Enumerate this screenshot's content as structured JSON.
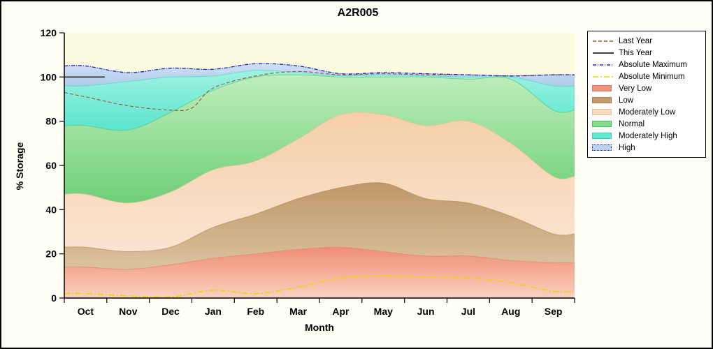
{
  "title": "A2R005",
  "axes": {
    "x_label": "Month",
    "y_label": "% Storage",
    "y_ticks": [
      0,
      20,
      40,
      60,
      80,
      100,
      120
    ],
    "months": [
      "Oct",
      "Nov",
      "Dec",
      "Jan",
      "Feb",
      "Mar",
      "Apr",
      "May",
      "Jun",
      "Jul",
      "Aug",
      "Sep"
    ]
  },
  "colors": {
    "plot_bg": "#fbfbdf",
    "figure_bg": "#fffff6",
    "axis": "#000000"
  },
  "chart_data": {
    "type": "area",
    "title": "A2R005",
    "xlabel": "Month",
    "ylabel": "% Storage",
    "ylim": [
      0,
      120
    ],
    "grid": false,
    "legend_position": "right-outside",
    "categories": [
      "Oct",
      "Nov",
      "Dec",
      "Jan",
      "Feb",
      "Mar",
      "Apr",
      "May",
      "Jun",
      "Jul",
      "Aug",
      "Sep"
    ],
    "bands_note": "tops are cumulative upper boundaries in % storage for each stacked percentile band",
    "bands": [
      {
        "name": "Very Low",
        "tops": [
          14,
          13,
          15,
          18,
          20,
          22,
          23,
          21,
          19,
          19,
          17,
          16
        ],
        "fill_top": "#ef8e74",
        "fill_bottom": "#fbd0c0",
        "stroke": "#e07b5e",
        "legend_color": "#f4937c"
      },
      {
        "name": "Low",
        "tops": [
          23,
          21,
          23,
          32,
          38,
          45,
          50,
          52,
          45,
          43,
          37,
          29
        ],
        "fill_top": "#be9768",
        "fill_bottom": "#dcc3a0",
        "stroke": "#a97f50",
        "legend_color": "#c49a6c"
      },
      {
        "name": "Moderately Low",
        "tops": [
          47,
          43,
          48,
          58,
          62,
          72,
          83,
          83,
          78,
          80,
          70,
          55
        ],
        "fill_top": "#f5cfa9",
        "fill_bottom": "#fae4d0",
        "stroke": "#e9b98a",
        "legend_color": "#f8dcbe"
      },
      {
        "name": "Normal",
        "tops": [
          78,
          76,
          84,
          94,
          100,
          101,
          100,
          100,
          100,
          99,
          99,
          85
        ],
        "fill_top": "#bfeebb",
        "fill_bottom": "#6ecf78",
        "stroke": "#4dbe63",
        "legend_color": "#85db88"
      },
      {
        "name": "Moderately High",
        "tops": [
          96,
          98,
          100,
          100.5,
          103,
          102,
          100.5,
          101,
          100.5,
          100,
          100,
          96
        ],
        "fill_top": "#9ff2e2",
        "fill_bottom": "#58e5ce",
        "stroke": "#3bd6bc",
        "legend_color": "#63e8d0"
      },
      {
        "name": "High",
        "tops": [
          105,
          102,
          104,
          103.5,
          106,
          105,
          101.5,
          102,
          101.5,
          101,
          100.5,
          101
        ],
        "fill_top": "#cfe0f6",
        "fill_bottom": "#aecbea",
        "stroke": "#9fbce0",
        "legend_color": "#bad2ee"
      }
    ],
    "lines": [
      {
        "name": "Last Year",
        "color": "#a0522d",
        "dash": "5 3",
        "width": 1.1,
        "u": [
          0,
          0.5,
          1.5,
          2.5,
          3.0,
          3.5,
          4.5,
          5.5,
          6.5,
          7.5,
          8.5,
          9.5,
          10.5,
          11.5,
          12
        ],
        "v": [
          93,
          91,
          87,
          85,
          86,
          95,
          100.5,
          102.5,
          101,
          101.5,
          101,
          101,
          100.5,
          101,
          101
        ]
      },
      {
        "name": "This Year",
        "color": "#000000",
        "dash": "",
        "width": 1.4,
        "u": [
          0,
          0.5,
          0.95
        ],
        "v": [
          100,
          100,
          100
        ]
      },
      {
        "name": "Absolute Maximum",
        "color": "#2020c0",
        "dash": "5 2 1 2",
        "width": 1.3,
        "u": [
          0,
          0.5,
          1.5,
          2.5,
          3.5,
          4.5,
          5.5,
          6.5,
          7.5,
          8.5,
          9.5,
          10.5,
          11.5,
          12
        ],
        "v": [
          105,
          105,
          102,
          104,
          103.5,
          106,
          105,
          101.5,
          102,
          101.5,
          101,
          100.5,
          101,
          101
        ]
      },
      {
        "name": "Absolute Minimum",
        "color": "#e8d800",
        "dash": "8 3 2 3",
        "width": 1.6,
        "u": [
          0,
          0.5,
          1.5,
          2.5,
          3.5,
          4.5,
          5.5,
          6.5,
          7.5,
          8.5,
          9.5,
          10.5,
          11.5,
          12
        ],
        "v": [
          2,
          2,
          1,
          0.5,
          3.5,
          2,
          5,
          9,
          10,
          9.5,
          9,
          7,
          3,
          3
        ]
      }
    ]
  },
  "legend": {
    "items": [
      {
        "label": "Last Year",
        "swatch": "line",
        "color": "#a0522d",
        "dash": "5 3"
      },
      {
        "label": "This Year",
        "swatch": "line",
        "color": "#000000",
        "dash": ""
      },
      {
        "label": "Absolute Maximum",
        "swatch": "line",
        "color": "#2020c0",
        "dash": "5 2 1 2"
      },
      {
        "label": "Absolute Minimum",
        "swatch": "line",
        "color": "#e8d800",
        "dash": "8 3 2 3"
      },
      {
        "label": "Very Low",
        "swatch": "box",
        "color": "#f4937c",
        "border": "#d97b62"
      },
      {
        "label": "Low",
        "swatch": "box",
        "color": "#c49a6c",
        "border": "#a97f50"
      },
      {
        "label": "Moderately Low",
        "swatch": "box",
        "color": "#f8dcbe",
        "border": "#e2bd95"
      },
      {
        "label": "Normal",
        "swatch": "box",
        "color": "#85db88",
        "border": "#56be63"
      },
      {
        "label": "Moderately High",
        "swatch": "box",
        "color": "#63e8d0",
        "border": "#3bd0b6"
      },
      {
        "label": "High",
        "swatch": "box",
        "color": "#bad2ee",
        "border": "#2020c0",
        "dotted_border": true
      }
    ]
  }
}
